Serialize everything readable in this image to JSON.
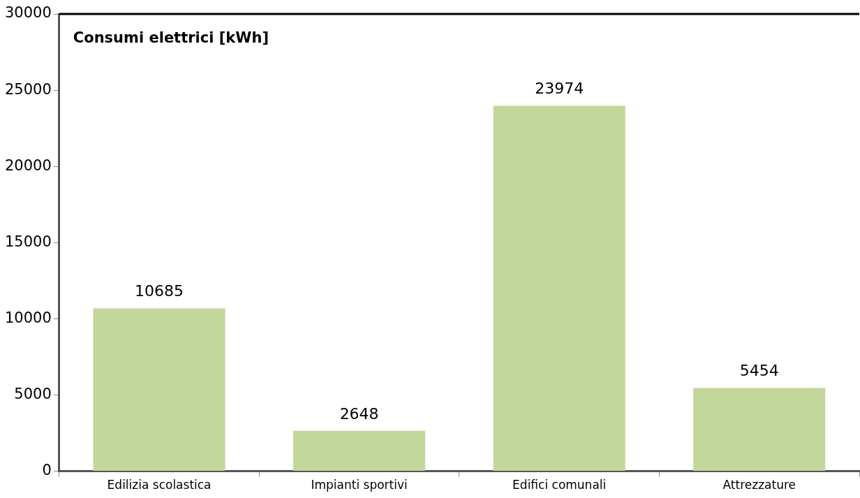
{
  "chart_data": {
    "type": "bar",
    "title": "Consumi elettrici [kWh]",
    "categories": [
      "Edilizia scolastica",
      "Impianti sportivi",
      "Edifici comunali",
      "Attrezzature"
    ],
    "values": [
      10685,
      2648,
      23974,
      5454
    ],
    "color": "#c4d79b",
    "ylim": [
      0,
      30000
    ],
    "yticks": [
      0,
      5000,
      10000,
      15000,
      20000,
      25000,
      30000
    ],
    "grid": false,
    "legend": false,
    "data_labels": true
  }
}
